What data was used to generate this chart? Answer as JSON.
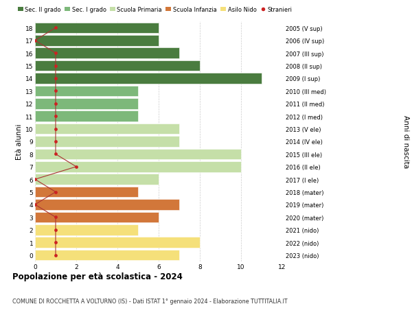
{
  "ages": [
    18,
    17,
    16,
    15,
    14,
    13,
    12,
    11,
    10,
    9,
    8,
    7,
    6,
    5,
    4,
    3,
    2,
    1,
    0
  ],
  "right_labels": [
    "2005 (V sup)",
    "2006 (IV sup)",
    "2007 (III sup)",
    "2008 (II sup)",
    "2009 (I sup)",
    "2010 (III med)",
    "2011 (II med)",
    "2012 (I med)",
    "2013 (V ele)",
    "2014 (IV ele)",
    "2015 (III ele)",
    "2016 (II ele)",
    "2017 (I ele)",
    "2018 (mater)",
    "2019 (mater)",
    "2020 (mater)",
    "2021 (nido)",
    "2022 (nido)",
    "2023 (nido)"
  ],
  "bar_values": [
    6,
    6,
    7,
    8,
    11,
    5,
    5,
    5,
    7,
    7,
    10,
    10,
    6,
    5,
    7,
    6,
    5,
    8,
    7
  ],
  "bar_colors": [
    "#4a7c3f",
    "#4a7c3f",
    "#4a7c3f",
    "#4a7c3f",
    "#4a7c3f",
    "#7db87a",
    "#7db87a",
    "#7db87a",
    "#c5dfa8",
    "#c5dfa8",
    "#c5dfa8",
    "#c5dfa8",
    "#c5dfa8",
    "#d2773a",
    "#d2773a",
    "#d2773a",
    "#f5e07a",
    "#f5e07a",
    "#f5e07a"
  ],
  "stranieri_values": [
    1,
    0,
    1,
    1,
    1,
    1,
    1,
    1,
    1,
    1,
    1,
    2,
    0,
    1,
    0,
    1,
    1,
    1,
    1
  ],
  "legend_labels": [
    "Sec. II grado",
    "Sec. I grado",
    "Scuola Primaria",
    "Scuola Infanzia",
    "Asilo Nido",
    "Stranieri"
  ],
  "legend_colors": [
    "#4a7c3f",
    "#7db87a",
    "#c5dfa8",
    "#d2773a",
    "#f5e07a",
    "#cc2222"
  ],
  "title": "Popolazione per età scolastica - 2024",
  "subtitle": "COMUNE DI ROCCHETTA A VOLTURNO (IS) - Dati ISTAT 1° gennaio 2024 - Elaborazione TUTTITALIA.IT",
  "ylabel_left": "Età alunni",
  "ylabel_right": "Anni di nascita",
  "xlim": [
    0,
    12
  ],
  "bar_height": 0.85,
  "bg_color": "#ffffff",
  "grid_color": "#cccccc",
  "stranieri_color": "#cc2222",
  "line_color": "#aa3333"
}
